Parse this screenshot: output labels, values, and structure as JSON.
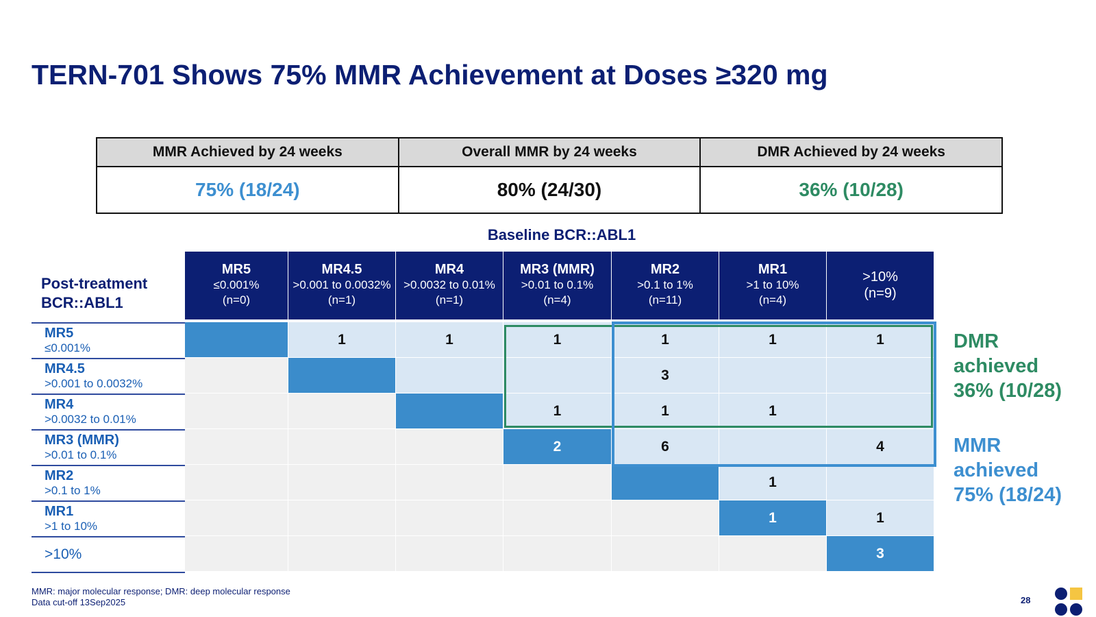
{
  "title": "TERN-701 Shows 75% MMR Achievement at Doses ≥320 mg",
  "summary": {
    "headers": [
      "MMR Achieved by 24 weeks",
      "Overall MMR by 24 weeks",
      "DMR Achieved by 24 weeks"
    ],
    "values": [
      "75% (18/24)",
      "80% (24/30)",
      "36% (10/28)"
    ],
    "value_colors": [
      "#3d8fd0",
      "#111111",
      "#2e8b63"
    ]
  },
  "matrix": {
    "baseline_label": "Baseline BCR::ABL1",
    "post_label_line1": "Post-treatment",
    "post_label_line2": "BCR::ABL1",
    "columns": [
      {
        "title": "MR5",
        "range": "≤0.001%",
        "n": "(n=0)"
      },
      {
        "title": "MR4.5",
        "range": ">0.001 to 0.0032%",
        "n": "(n=1)"
      },
      {
        "title": "MR4",
        "range": ">0.0032 to 0.01%",
        "n": "(n=1)"
      },
      {
        "title": "MR3 (MMR)",
        "range": ">0.01 to 0.1%",
        "n": "(n=4)"
      },
      {
        "title": "MR2",
        "range": ">0.1 to 1%",
        "n": "(n=11)"
      },
      {
        "title": "MR1",
        "range": ">1 to 10%",
        "n": "(n=4)"
      },
      {
        "title": ">10%",
        "range": "",
        "n": "(n=9)"
      }
    ],
    "rows": [
      {
        "title": "MR5",
        "range": "≤0.001%"
      },
      {
        "title": "MR4.5",
        "range": ">0.001 to 0.0032%"
      },
      {
        "title": "MR4",
        "range": ">0.0032 to 0.01%"
      },
      {
        "title": "MR3 (MMR)",
        "range": ">0.01 to 0.1%"
      },
      {
        "title": "MR2",
        "range": ">0.1 to 1%"
      },
      {
        "title": "MR1",
        "range": ">1 to 10%"
      },
      {
        "title": ">10%",
        "range": ""
      }
    ],
    "cells": [
      [
        "",
        "1",
        "1",
        "1",
        "1",
        "1",
        "1"
      ],
      [
        "",
        "",
        "",
        "",
        "3",
        "",
        ""
      ],
      [
        "",
        "",
        "",
        "1",
        "1",
        "1",
        ""
      ],
      [
        "",
        "",
        "",
        "2",
        "6",
        "",
        "4"
      ],
      [
        "",
        "",
        "",
        "",
        "",
        "1",
        ""
      ],
      [
        "",
        "",
        "",
        "",
        "",
        "1",
        "1"
      ],
      [
        "",
        "",
        "",
        "",
        "",
        "",
        "3"
      ]
    ],
    "cell_shading": [
      [
        "dark",
        "light",
        "light",
        "light",
        "light",
        "light",
        "light"
      ],
      [
        "grey",
        "dark",
        "light",
        "light",
        "light",
        "light",
        "light"
      ],
      [
        "grey",
        "grey",
        "dark",
        "light",
        "light",
        "light",
        "light"
      ],
      [
        "grey",
        "grey",
        "grey",
        "dark",
        "light",
        "light",
        "light"
      ],
      [
        "grey",
        "grey",
        "grey",
        "grey",
        "dark",
        "light",
        "light"
      ],
      [
        "grey",
        "grey",
        "grey",
        "grey",
        "grey",
        "dark",
        "light"
      ],
      [
        "grey",
        "grey",
        "grey",
        "grey",
        "grey",
        "grey",
        "dark"
      ]
    ]
  },
  "side_notes": {
    "dmr_line1": "DMR",
    "dmr_line2": "achieved",
    "dmr_line3": "36% (10/28)",
    "mmr_line1": "MMR",
    "mmr_line2": "achieved",
    "mmr_line3": "75% (18/24)"
  },
  "footnote": {
    "line1": "MMR: major molecular response; DMR: deep molecular response",
    "line2": "Data cut-off 13Sep2025"
  },
  "page_number": "28",
  "colors": {
    "navy": "#0c1f73",
    "dark_blue_cell": "#3b8ccb",
    "light_blue_cell": "#d9e7f4",
    "grey_cell": "#f0f0f0",
    "dmr_green": "#2e8b63",
    "mmr_blue": "#3d8fd0",
    "logo_yellow": "#f5c542"
  },
  "icons": {
    "logo": "company-logo-icon"
  }
}
